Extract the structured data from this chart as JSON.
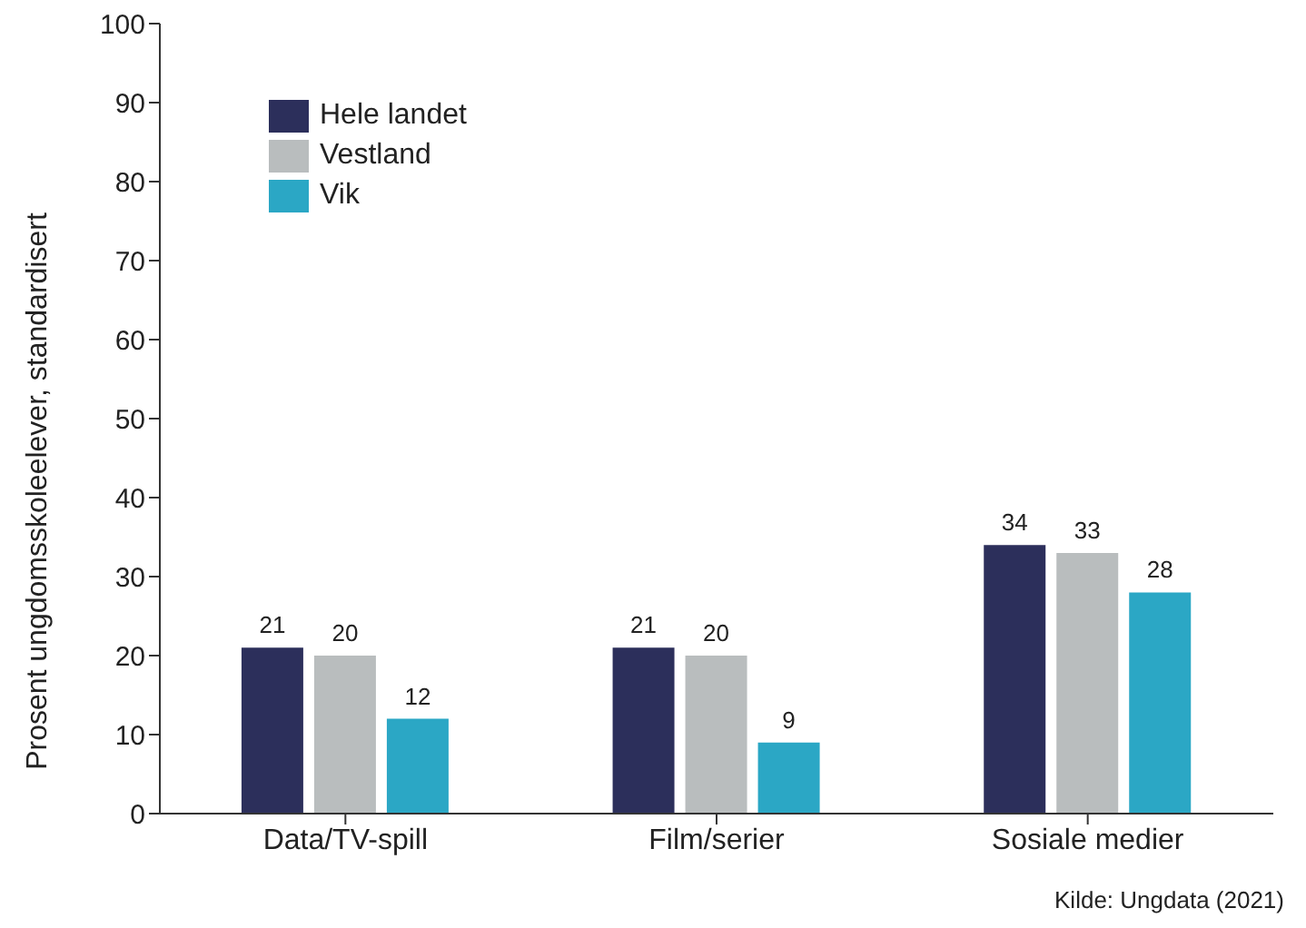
{
  "chart_data": {
    "type": "bar",
    "ylabel": "Prosent ungdomsskoleelever, standardisert",
    "categories": [
      "Data/TV-spill",
      "Film/serier",
      "Sosiale medier"
    ],
    "series": [
      {
        "name": "Hele landet",
        "color": "#2c2f5b",
        "values": [
          21,
          21,
          34
        ]
      },
      {
        "name": "Vestland",
        "color": "#b9bdbe",
        "values": [
          20,
          20,
          33
        ]
      },
      {
        "name": "Vik",
        "color": "#2ba7c5",
        "values": [
          12,
          9,
          28
        ]
      }
    ],
    "ylim": [
      0,
      100
    ],
    "yticks": [
      0,
      10,
      20,
      30,
      40,
      50,
      60,
      70,
      80,
      90,
      100
    ],
    "data_labels": true,
    "legend": "top left",
    "grid": false,
    "annotations": [
      "Kilde: Ungdata (2021)"
    ]
  }
}
